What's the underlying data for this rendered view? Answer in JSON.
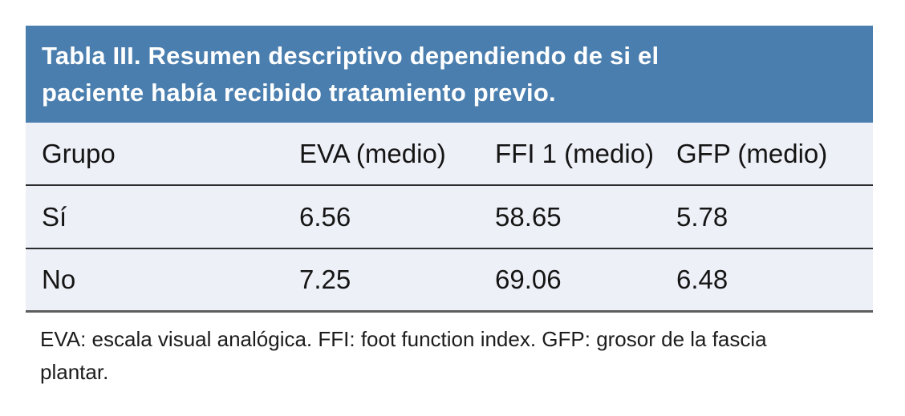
{
  "title": {
    "lines": [
      "Tabla III. Resumen descriptivo dependiendo de si el",
      "paciente había recibido tratamiento previo."
    ],
    "full_text": "Tabla III. Resumen descriptivo dependiendo de si el paciente había recibido tratamiento previo."
  },
  "table": {
    "columns": [
      "Grupo",
      "EVA (medio)",
      "FFI 1 (medio)",
      "GFP (medio)"
    ],
    "rows": [
      {
        "cells": [
          "Sí",
          "6.56",
          "58.65",
          "5.78"
        ]
      },
      {
        "cells": [
          "No",
          "7.25",
          "69.06",
          "6.48"
        ]
      }
    ]
  },
  "footnote": {
    "lines": [
      "EVA: escala visual analógica. FFI: foot function index. GFP: grosor de la fascia",
      "plantar."
    ],
    "full_text": "EVA: escala visual analógica. FFI: foot function index. GFP: grosor de la fascia plantar."
  },
  "colors": {
    "title_bar_bg": "#4a7eae",
    "title_text": "#ffffff",
    "table_bg": "#edf0f7",
    "body_text": "#151515",
    "row_divider": "#2a2c2e",
    "bottom_border": "#5c5e60",
    "page_bg": "#ffffff"
  }
}
